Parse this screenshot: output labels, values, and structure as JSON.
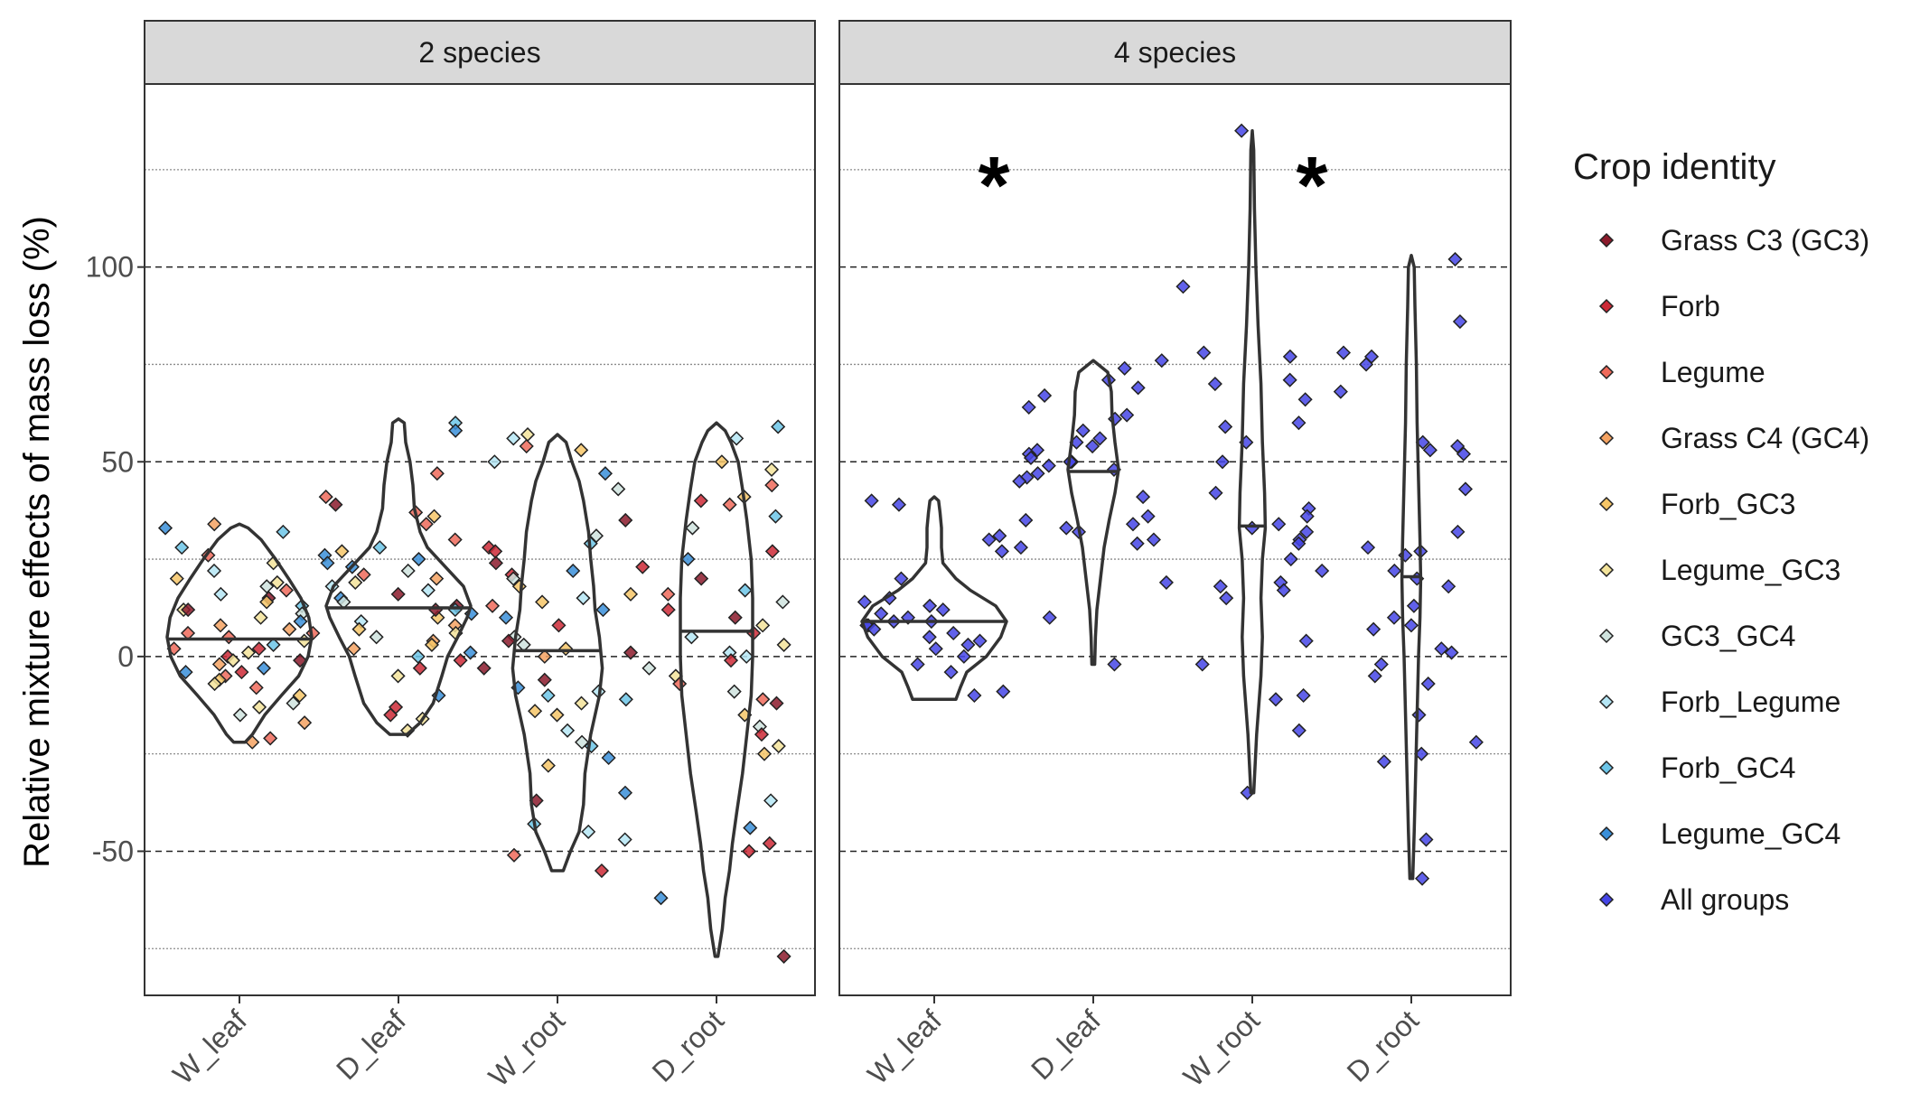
{
  "chart_data": {
    "type": "violin",
    "ylabel": "Relative mixture effects of mass loss (%)",
    "ylim": [
      -87,
      147
    ],
    "yticks": [
      -50,
      0,
      50,
      100
    ],
    "major_grid": [
      -50,
      0,
      50,
      100
    ],
    "minor_grid": [
      -75,
      -25,
      25,
      75,
      125
    ],
    "categories": [
      "W_leaf",
      "D_leaf",
      "W_root",
      "D_root"
    ],
    "legend": {
      "title": "Crop identity",
      "placement": "right",
      "entries": [
        {
          "label": "Grass C3 (GC3)",
          "color": "#8b1a2b"
        },
        {
          "label": "Forb",
          "color": "#cc2936"
        },
        {
          "label": "Legume",
          "color": "#ef6a5a"
        },
        {
          "label": "Grass C4 (GC4)",
          "color": "#f4a261"
        },
        {
          "label": "Forb_GC3",
          "color": "#f6c667"
        },
        {
          "label": "Legume_GC3",
          "color": "#f3e39a"
        },
        {
          "label": "GC3_GC4",
          "color": "#cfe3de"
        },
        {
          "label": "Forb_Legume",
          "color": "#b5e6f5"
        },
        {
          "label": "Forb_GC4",
          "color": "#6cc5e8"
        },
        {
          "label": "Legume_GC4",
          "color": "#3a8fd9"
        },
        {
          "label": "All groups",
          "color": "#4545e6"
        }
      ]
    },
    "panels": [
      {
        "title": "2 species",
        "significance": [
          "",
          "",
          "",
          ""
        ],
        "violins": [
          {
            "category": "W_leaf",
            "median": 4.5,
            "profile": [
              [
                -22,
                0.08
              ],
              [
                -20,
                0.18
              ],
              [
                -15,
                0.35
              ],
              [
                -10,
                0.58
              ],
              [
                -5,
                0.82
              ],
              [
                0,
                0.95
              ],
              [
                5,
                1.0
              ],
              [
                10,
                0.96
              ],
              [
                15,
                0.85
              ],
              [
                20,
                0.68
              ],
              [
                25,
                0.5
              ],
              [
                30,
                0.3
              ],
              [
                33,
                0.12
              ],
              [
                34,
                0.0
              ]
            ]
          },
          {
            "category": "D_leaf",
            "median": 12.5,
            "profile": [
              [
                -20,
                0.12
              ],
              [
                -17,
                0.3
              ],
              [
                -12,
                0.48
              ],
              [
                -5,
                0.6
              ],
              [
                0,
                0.68
              ],
              [
                5,
                0.82
              ],
              [
                10,
                0.95
              ],
              [
                13,
                1.0
              ],
              [
                18,
                0.9
              ],
              [
                23,
                0.65
              ],
              [
                28,
                0.4
              ],
              [
                32,
                0.3
              ],
              [
                38,
                0.22
              ],
              [
                44,
                0.2
              ],
              [
                50,
                0.16
              ],
              [
                55,
                0.1
              ],
              [
                60,
                0.08
              ],
              [
                61,
                0.0
              ]
            ]
          },
          {
            "category": "W_root",
            "median": 1.5,
            "profile": [
              [
                -55,
                0.08
              ],
              [
                -50,
                0.18
              ],
              [
                -45,
                0.3
              ],
              [
                -38,
                0.36
              ],
              [
                -30,
                0.38
              ],
              [
                -20,
                0.46
              ],
              [
                -10,
                0.58
              ],
              [
                -3,
                0.62
              ],
              [
                5,
                0.58
              ],
              [
                12,
                0.52
              ],
              [
                18,
                0.5
              ],
              [
                25,
                0.46
              ],
              [
                32,
                0.43
              ],
              [
                40,
                0.36
              ],
              [
                45,
                0.3
              ],
              [
                50,
                0.2
              ],
              [
                55,
                0.12
              ],
              [
                57,
                0.0
              ]
            ]
          },
          {
            "category": "D_root",
            "median": 6.5,
            "profile": [
              [
                -77,
                0.02
              ],
              [
                -70,
                0.08
              ],
              [
                -62,
                0.12
              ],
              [
                -55,
                0.18
              ],
              [
                -48,
                0.22
              ],
              [
                -40,
                0.28
              ],
              [
                -30,
                0.36
              ],
              [
                -20,
                0.42
              ],
              [
                -10,
                0.48
              ],
              [
                0,
                0.5
              ],
              [
                8,
                0.5
              ],
              [
                15,
                0.5
              ],
              [
                25,
                0.48
              ],
              [
                35,
                0.42
              ],
              [
                43,
                0.36
              ],
              [
                50,
                0.3
              ],
              [
                55,
                0.2
              ],
              [
                58,
                0.12
              ],
              [
                60,
                0.0
              ]
            ]
          }
        ],
        "points": [
          {
            "category": "W_leaf",
            "values": [
              33,
              26,
              24,
              22,
              19,
              18,
              17,
              16,
              15,
              14,
              13,
              12,
              11,
              10,
              9,
              8,
              7,
              6,
              5,
              4,
              3,
              2,
              1,
              0,
              -1,
              -2,
              -3,
              -4,
              -5,
              -6,
              -7,
              -8,
              -10,
              -12,
              -13,
              -15,
              -17,
              -21,
              -22,
              34,
              32,
              28,
              20,
              12,
              6,
              2,
              -1,
              -4
            ]
          },
          {
            "category": "D_leaf",
            "values": [
              60,
              58,
              47,
              41,
              39,
              37,
              36,
              34,
              30,
              28,
              27,
              26,
              25,
              24,
              23,
              22,
              21,
              19,
              18,
              17,
              16,
              15,
              14,
              13,
              12,
              11,
              10,
              9,
              8,
              7,
              6,
              5,
              4,
              3,
              2,
              1,
              0,
              -1,
              -3,
              -5,
              -10,
              -13,
              -15,
              -16,
              -19,
              20,
              12
            ]
          },
          {
            "category": "W_root",
            "values": [
              57,
              56,
              54,
              53,
              50,
              47,
              43,
              35,
              31,
              29,
              28,
              27,
              24,
              22,
              21,
              20,
              18,
              16,
              15,
              14,
              13,
              12,
              10,
              8,
              5,
              4,
              3,
              2,
              1,
              0,
              -3,
              -6,
              -8,
              -9,
              -10,
              -11,
              -12,
              -14,
              -15,
              -19,
              -22,
              -23,
              -26,
              -28,
              -35,
              -37,
              -43,
              -45,
              -47,
              -51,
              -55
            ]
          },
          {
            "category": "D_root",
            "values": [
              59,
              56,
              50,
              48,
              44,
              41,
              40,
              39,
              36,
              33,
              27,
              25,
              23,
              20,
              17,
              16,
              14,
              12,
              10,
              8,
              6,
              5,
              3,
              1,
              0,
              -1,
              -3,
              -5,
              -7,
              -9,
              -11,
              -12,
              -15,
              -18,
              -20,
              -23,
              -25,
              -37,
              -44,
              -48,
              -50,
              -62,
              -77
            ]
          }
        ]
      },
      {
        "title": "4 species",
        "significance": [
          "",
          "*",
          "",
          "*"
        ],
        "violins": [
          {
            "category": "W_leaf",
            "median": 9,
            "profile": [
              [
                -11,
                0.3
              ],
              [
                -8,
                0.36
              ],
              [
                -4,
                0.45
              ],
              [
                0,
                0.72
              ],
              [
                5,
                0.92
              ],
              [
                9,
                1.0
              ],
              [
                13,
                0.85
              ],
              [
                17,
                0.5
              ],
              [
                20,
                0.3
              ],
              [
                24,
                0.12
              ],
              [
                28,
                0.1
              ],
              [
                33,
                0.1
              ],
              [
                37,
                0.08
              ],
              [
                40,
                0.06
              ],
              [
                41,
                0.0
              ]
            ]
          },
          {
            "category": "D_leaf",
            "median": 47.5,
            "profile": [
              [
                -2,
                0.02
              ],
              [
                5,
                0.03
              ],
              [
                12,
                0.05
              ],
              [
                20,
                0.1
              ],
              [
                28,
                0.15
              ],
              [
                35,
                0.22
              ],
              [
                42,
                0.3
              ],
              [
                48,
                0.35
              ],
              [
                55,
                0.3
              ],
              [
                62,
                0.26
              ],
              [
                68,
                0.25
              ],
              [
                73,
                0.2
              ],
              [
                76,
                0.0
              ]
            ]
          },
          {
            "category": "W_root",
            "median": 33.5,
            "profile": [
              [
                -35,
                0.02
              ],
              [
                -20,
                0.06
              ],
              [
                -5,
                0.12
              ],
              [
                5,
                0.14
              ],
              [
                15,
                0.12
              ],
              [
                25,
                0.14
              ],
              [
                33,
                0.18
              ],
              [
                42,
                0.17
              ],
              [
                55,
                0.14
              ],
              [
                70,
                0.12
              ],
              [
                85,
                0.08
              ],
              [
                100,
                0.05
              ],
              [
                115,
                0.03
              ],
              [
                130,
                0.02
              ],
              [
                135,
                0.0
              ]
            ]
          },
          {
            "category": "D_root",
            "median": 20.5,
            "profile": [
              [
                -57,
                0.02
              ],
              [
                -45,
                0.04
              ],
              [
                -30,
                0.06
              ],
              [
                -15,
                0.08
              ],
              [
                0,
                0.1
              ],
              [
                10,
                0.12
              ],
              [
                20,
                0.13
              ],
              [
                30,
                0.12
              ],
              [
                45,
                0.1
              ],
              [
                60,
                0.08
              ],
              [
                75,
                0.07
              ],
              [
                90,
                0.05
              ],
              [
                100,
                0.04
              ],
              [
                103,
                0.0
              ]
            ]
          }
        ],
        "points": [
          {
            "category": "W_leaf",
            "values": [
              40,
              39,
              31,
              30,
              27,
              20,
              15,
              14,
              13,
              12,
              11,
              10,
              9,
              9,
              8,
              8,
              7,
              6,
              5,
              4,
              3,
              2,
              0,
              -2,
              -4,
              -9,
              -10
            ]
          },
          {
            "category": "D_leaf",
            "values": [
              76,
              74,
              71,
              69,
              67,
              64,
              62,
              61,
              58,
              56,
              55,
              54,
              53,
              52,
              51,
              50,
              50,
              49,
              48,
              47,
              46,
              45,
              41,
              36,
              35,
              34,
              33,
              32,
              30,
              29,
              28,
              19,
              10,
              -2
            ]
          },
          {
            "category": "W_root",
            "values": [
              135,
              95,
              78,
              77,
              71,
              70,
              66,
              60,
              59,
              55,
              50,
              42,
              38,
              36,
              34,
              33,
              32,
              30,
              29,
              25,
              22,
              19,
              18,
              17,
              15,
              4,
              -2,
              -10,
              -11,
              -19,
              -35
            ]
          },
          {
            "category": "D_root",
            "values": [
              102,
              86,
              78,
              77,
              75,
              68,
              55,
              54,
              53,
              52,
              43,
              32,
              28,
              27,
              26,
              22,
              20,
              18,
              13,
              10,
              8,
              7,
              2,
              1,
              -2,
              -5,
              -7,
              -15,
              -22,
              -25,
              -27,
              -47,
              -57
            ]
          }
        ]
      }
    ]
  }
}
